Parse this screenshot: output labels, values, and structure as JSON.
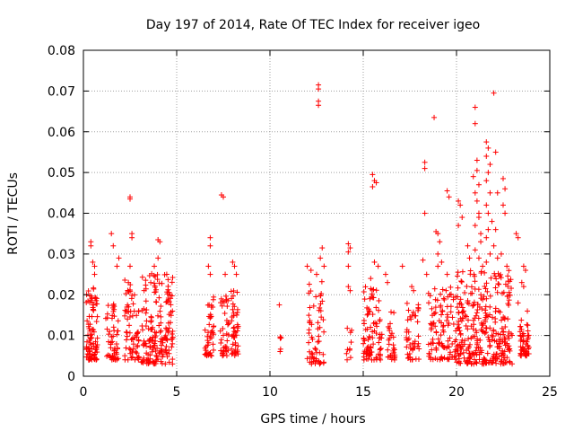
{
  "chart_data": {
    "type": "scatter",
    "title": "Day 197 of 2014, Rate Of TEC Index for receiver igeo",
    "xlabel": "GPS time / hours",
    "ylabel": "ROTI / TECUs",
    "xlim": [
      0,
      25
    ],
    "ylim": [
      0,
      0.08
    ],
    "xticks": [
      0,
      5,
      10,
      15,
      20,
      25
    ],
    "xtick_labels": [
      "0",
      "5",
      "10",
      "15",
      "20",
      "25"
    ],
    "yticks": [
      0,
      0.01,
      0.02,
      0.03,
      0.04,
      0.05,
      0.06,
      0.07,
      0.08
    ],
    "ytick_labels": [
      "0",
      "0.01",
      "0.02",
      "0.03",
      "0.04",
      "0.05",
      "0.06",
      "0.07",
      "0.08"
    ],
    "grid": true,
    "marker": "plus",
    "color": "#ff0000",
    "clusters": [
      {
        "x": [
          0.15,
          0.75
        ],
        "y": [
          0.004,
          0.022
        ],
        "n": 90
      },
      {
        "x": [
          1.2,
          1.9
        ],
        "y": [
          0.004,
          0.018
        ],
        "n": 55
      },
      {
        "x": [
          2.2,
          3.0
        ],
        "y": [
          0.004,
          0.024
        ],
        "n": 70
      },
      {
        "x": [
          3.1,
          4.8
        ],
        "y": [
          0.003,
          0.026
        ],
        "n": 180
      },
      {
        "x": [
          6.5,
          7.0
        ],
        "y": [
          0.005,
          0.02
        ],
        "n": 45
      },
      {
        "x": [
          7.3,
          7.8
        ],
        "y": [
          0.005,
          0.02
        ],
        "n": 40
      },
      {
        "x": [
          7.9,
          8.3
        ],
        "y": [
          0.005,
          0.022
        ],
        "n": 45
      },
      {
        "x": [
          10.5,
          10.6
        ],
        "y": [
          0.006,
          0.012
        ],
        "n": 5
      },
      {
        "x": [
          12.0,
          12.9
        ],
        "y": [
          0.003,
          0.024
        ],
        "n": 60
      },
      {
        "x": [
          14.1,
          14.4
        ],
        "y": [
          0.004,
          0.012
        ],
        "n": 10
      },
      {
        "x": [
          15.0,
          16.0
        ],
        "y": [
          0.004,
          0.022
        ],
        "n": 90
      },
      {
        "x": [
          16.3,
          16.7
        ],
        "y": [
          0.004,
          0.016
        ],
        "n": 30
      },
      {
        "x": [
          17.3,
          18.0
        ],
        "y": [
          0.004,
          0.018
        ],
        "n": 45
      },
      {
        "x": [
          18.5,
          20.0
        ],
        "y": [
          0.004,
          0.022
        ],
        "n": 110
      },
      {
        "x": [
          20.0,
          23.0
        ],
        "y": [
          0.003,
          0.026
        ],
        "n": 320
      },
      {
        "x": [
          23.4,
          23.9
        ],
        "y": [
          0.005,
          0.014
        ],
        "n": 50
      }
    ],
    "points": [
      [
        0.4,
        0.033
      ],
      [
        0.4,
        0.032
      ],
      [
        0.5,
        0.028
      ],
      [
        0.6,
        0.027
      ],
      [
        0.6,
        0.025
      ],
      [
        1.5,
        0.035
      ],
      [
        1.6,
        0.032
      ],
      [
        1.8,
        0.027
      ],
      [
        1.9,
        0.029
      ],
      [
        2.5,
        0.044
      ],
      [
        2.5,
        0.0435
      ],
      [
        2.6,
        0.035
      ],
      [
        2.6,
        0.034
      ],
      [
        2.5,
        0.027
      ],
      [
        4.0,
        0.0335
      ],
      [
        4.1,
        0.033
      ],
      [
        4.0,
        0.029
      ],
      [
        3.8,
        0.027
      ],
      [
        6.8,
        0.034
      ],
      [
        6.8,
        0.032
      ],
      [
        6.7,
        0.027
      ],
      [
        6.8,
        0.025
      ],
      [
        7.4,
        0.0445
      ],
      [
        7.5,
        0.044
      ],
      [
        7.6,
        0.025
      ],
      [
        8.0,
        0.028
      ],
      [
        8.1,
        0.027
      ],
      [
        8.2,
        0.025
      ],
      [
        10.5,
        0.0175
      ],
      [
        12.0,
        0.027
      ],
      [
        12.2,
        0.026
      ],
      [
        12.6,
        0.0715
      ],
      [
        12.6,
        0.0705
      ],
      [
        12.6,
        0.0675
      ],
      [
        12.6,
        0.0665
      ],
      [
        12.8,
        0.0315
      ],
      [
        12.7,
        0.029
      ],
      [
        12.9,
        0.027
      ],
      [
        12.5,
        0.025
      ],
      [
        14.2,
        0.0325
      ],
      [
        14.3,
        0.0315
      ],
      [
        14.2,
        0.0305
      ],
      [
        14.2,
        0.027
      ],
      [
        14.2,
        0.022
      ],
      [
        14.3,
        0.021
      ],
      [
        15.5,
        0.0495
      ],
      [
        15.6,
        0.048
      ],
      [
        15.5,
        0.0465
      ],
      [
        15.7,
        0.0475
      ],
      [
        15.6,
        0.028
      ],
      [
        15.8,
        0.027
      ],
      [
        15.4,
        0.024
      ],
      [
        16.2,
        0.025
      ],
      [
        16.3,
        0.023
      ],
      [
        17.1,
        0.027
      ],
      [
        17.6,
        0.022
      ],
      [
        17.7,
        0.021
      ],
      [
        18.3,
        0.0525
      ],
      [
        18.3,
        0.051
      ],
      [
        18.3,
        0.04
      ],
      [
        18.2,
        0.0285
      ],
      [
        18.4,
        0.025
      ],
      [
        18.8,
        0.0635
      ],
      [
        18.9,
        0.0355
      ],
      [
        19.0,
        0.035
      ],
      [
        19.1,
        0.033
      ],
      [
        19.0,
        0.03
      ],
      [
        19.2,
        0.028
      ],
      [
        19.0,
        0.027
      ],
      [
        19.5,
        0.0455
      ],
      [
        19.6,
        0.044
      ],
      [
        19.5,
        0.025
      ],
      [
        20.1,
        0.043
      ],
      [
        20.2,
        0.042
      ],
      [
        20.3,
        0.039
      ],
      [
        20.1,
        0.037
      ],
      [
        20.6,
        0.032
      ],
      [
        20.7,
        0.029
      ],
      [
        20.9,
        0.049
      ],
      [
        21.0,
        0.066
      ],
      [
        21.0,
        0.062
      ],
      [
        21.1,
        0.053
      ],
      [
        21.1,
        0.0505
      ],
      [
        21.2,
        0.047
      ],
      [
        21.0,
        0.045
      ],
      [
        21.1,
        0.043
      ],
      [
        21.2,
        0.04
      ],
      [
        21.2,
        0.039
      ],
      [
        21.0,
        0.037
      ],
      [
        21.3,
        0.035
      ],
      [
        21.3,
        0.033
      ],
      [
        21.0,
        0.031
      ],
      [
        21.2,
        0.029
      ],
      [
        21.4,
        0.027
      ],
      [
        21.6,
        0.0575
      ],
      [
        21.7,
        0.056
      ],
      [
        21.6,
        0.054
      ],
      [
        21.8,
        0.052
      ],
      [
        21.7,
        0.05
      ],
      [
        21.6,
        0.048
      ],
      [
        21.8,
        0.045
      ],
      [
        21.6,
        0.042
      ],
      [
        21.7,
        0.04
      ],
      [
        21.9,
        0.038
      ],
      [
        21.7,
        0.036
      ],
      [
        21.6,
        0.034
      ],
      [
        21.8,
        0.03
      ],
      [
        21.6,
        0.028
      ],
      [
        22.0,
        0.0695
      ],
      [
        22.1,
        0.055
      ],
      [
        22.2,
        0.045
      ],
      [
        22.1,
        0.036
      ],
      [
        22.0,
        0.032
      ],
      [
        22.2,
        0.029
      ],
      [
        22.5,
        0.0485
      ],
      [
        22.6,
        0.046
      ],
      [
        22.5,
        0.042
      ],
      [
        22.6,
        0.04
      ],
      [
        22.4,
        0.03
      ],
      [
        22.7,
        0.027
      ],
      [
        23.2,
        0.035
      ],
      [
        23.3,
        0.034
      ],
      [
        23.6,
        0.027
      ],
      [
        23.7,
        0.026
      ],
      [
        23.5,
        0.023
      ],
      [
        23.6,
        0.022
      ],
      [
        23.3,
        0.018
      ],
      [
        23.8,
        0.016
      ]
    ]
  }
}
